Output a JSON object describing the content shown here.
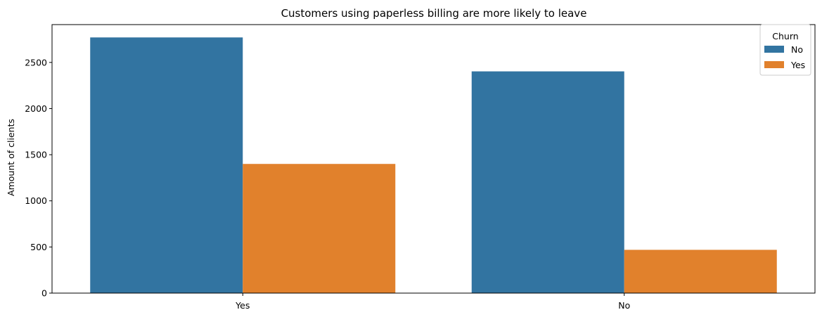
{
  "chart_data": {
    "type": "bar",
    "title": "Customers using paperless billing are more likely to leave",
    "xlabel": "",
    "ylabel": "Amount of clients",
    "categories": [
      "Yes",
      "No"
    ],
    "series": [
      {
        "name": "No",
        "values": [
          2771,
          2403
        ],
        "color": "#3274a1"
      },
      {
        "name": "Yes",
        "values": [
          1400,
          469
        ],
        "color": "#e1812c"
      }
    ],
    "ylim": [
      0,
      2910
    ],
    "yticks": [
      0,
      500,
      1000,
      1500,
      2000,
      2500
    ],
    "grid": false,
    "legend": {
      "title": "Churn",
      "placement": "top-right"
    }
  }
}
